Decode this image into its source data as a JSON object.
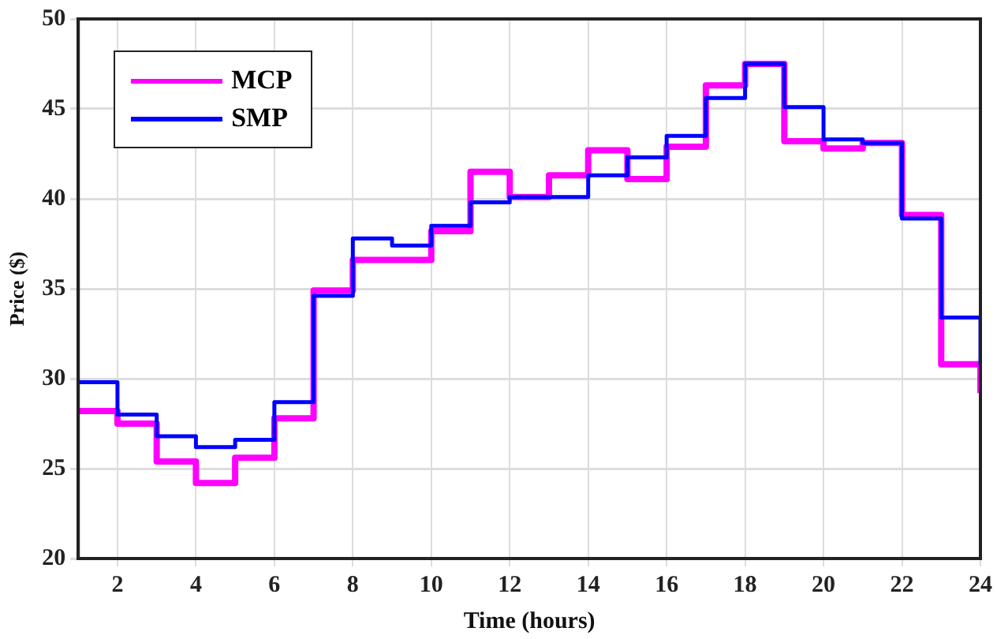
{
  "chart_data": {
    "type": "step",
    "xlabel": "Time (hours)",
    "ylabel": "Price ($)",
    "x": [
      1,
      2,
      3,
      4,
      5,
      6,
      7,
      8,
      9,
      10,
      11,
      12,
      13,
      14,
      15,
      16,
      17,
      18,
      19,
      20,
      21,
      22,
      23,
      24
    ],
    "series": [
      {
        "name": "MCP",
        "color": "#ff00ff",
        "values": [
          28.2,
          27.5,
          25.4,
          24.2,
          25.6,
          27.8,
          34.9,
          36.6,
          36.6,
          38.2,
          41.5,
          40.1,
          41.3,
          42.7,
          41.1,
          42.9,
          46.3,
          47.5,
          43.2,
          42.8,
          43.1,
          39.1,
          30.8,
          29.2
        ]
      },
      {
        "name": "SMP",
        "color": "#0000ff",
        "values": [
          29.8,
          28.0,
          26.8,
          26.2,
          26.6,
          28.7,
          34.6,
          37.8,
          37.4,
          38.5,
          39.8,
          40.1,
          40.1,
          41.3,
          42.3,
          43.5,
          45.6,
          47.5,
          45.1,
          43.3,
          43.1,
          38.9,
          33.4,
          30.7
        ]
      }
    ],
    "xlim": [
      1,
      24
    ],
    "xticks": [
      2,
      4,
      6,
      8,
      10,
      12,
      14,
      16,
      18,
      20,
      22,
      24
    ],
    "ylim": [
      20,
      50
    ],
    "yticks": [
      20,
      25,
      30,
      35,
      40,
      45,
      50
    ],
    "grid": true,
    "legend": "top left",
    "line_style": "solid",
    "marker": "none"
  }
}
